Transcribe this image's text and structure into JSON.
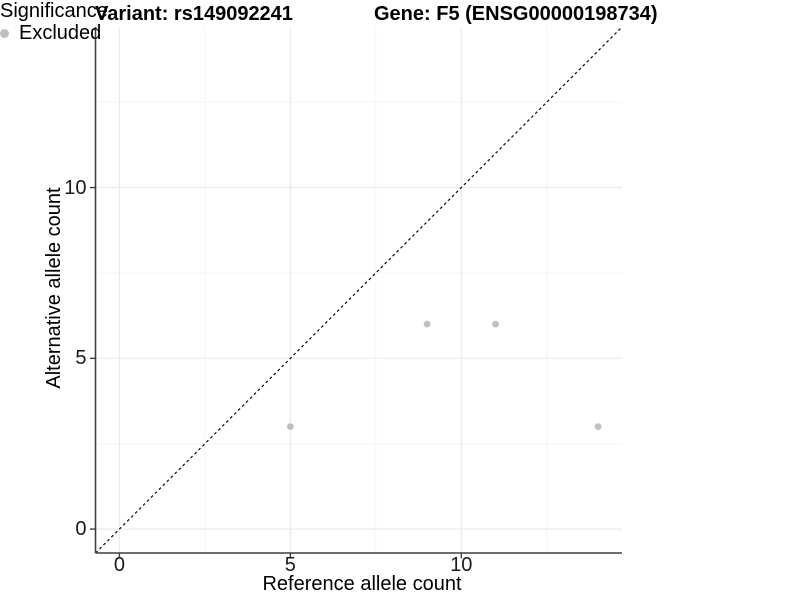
{
  "titles": {
    "variant": "Variant: rs149092241",
    "gene": "Gene: F5 (ENSG00000198734)"
  },
  "axes": {
    "x_label": "Reference allele count",
    "y_label": "Alternative allele count"
  },
  "legend": {
    "title": "Significance",
    "items": [
      {
        "label": "Excluded",
        "color": "#bfbfbf"
      }
    ]
  },
  "colors": {
    "background": "#ffffff",
    "grid_major": "#ebebeb",
    "grid_minor": "#f5f5f5",
    "axis_line": "#3f3f3f",
    "tick_mark": "#3f3f3f",
    "point": "#bfbfbf",
    "reference_line": "#0a0a0a",
    "text": "#000000"
  },
  "chart_data": {
    "type": "scatter",
    "title": "Variant: rs149092241    Gene: F5 (ENSG00000198734)",
    "xlabel": "Reference allele count",
    "ylabel": "Alternative allele count",
    "xlim": [
      -0.7,
      14.7
    ],
    "ylim": [
      -0.7,
      14.7
    ],
    "x_ticks": [
      0,
      5,
      10
    ],
    "y_ticks": [
      0,
      5,
      10
    ],
    "x_minor_ticks": [
      2.5,
      7.5,
      12.5
    ],
    "y_minor_ticks": [
      2.5,
      7.5,
      12.5
    ],
    "grid": "major+minor",
    "legend_position": "right",
    "series": [
      {
        "name": "Excluded",
        "color": "#bfbfbf",
        "marker": "circle",
        "points": [
          [
            5,
            3
          ],
          [
            9,
            6
          ],
          [
            11,
            6
          ],
          [
            14,
            3
          ]
        ]
      }
    ],
    "reference_line": {
      "kind": "identity",
      "slope": 1,
      "intercept": 0,
      "style": "dashed",
      "color": "#0a0a0a"
    }
  }
}
